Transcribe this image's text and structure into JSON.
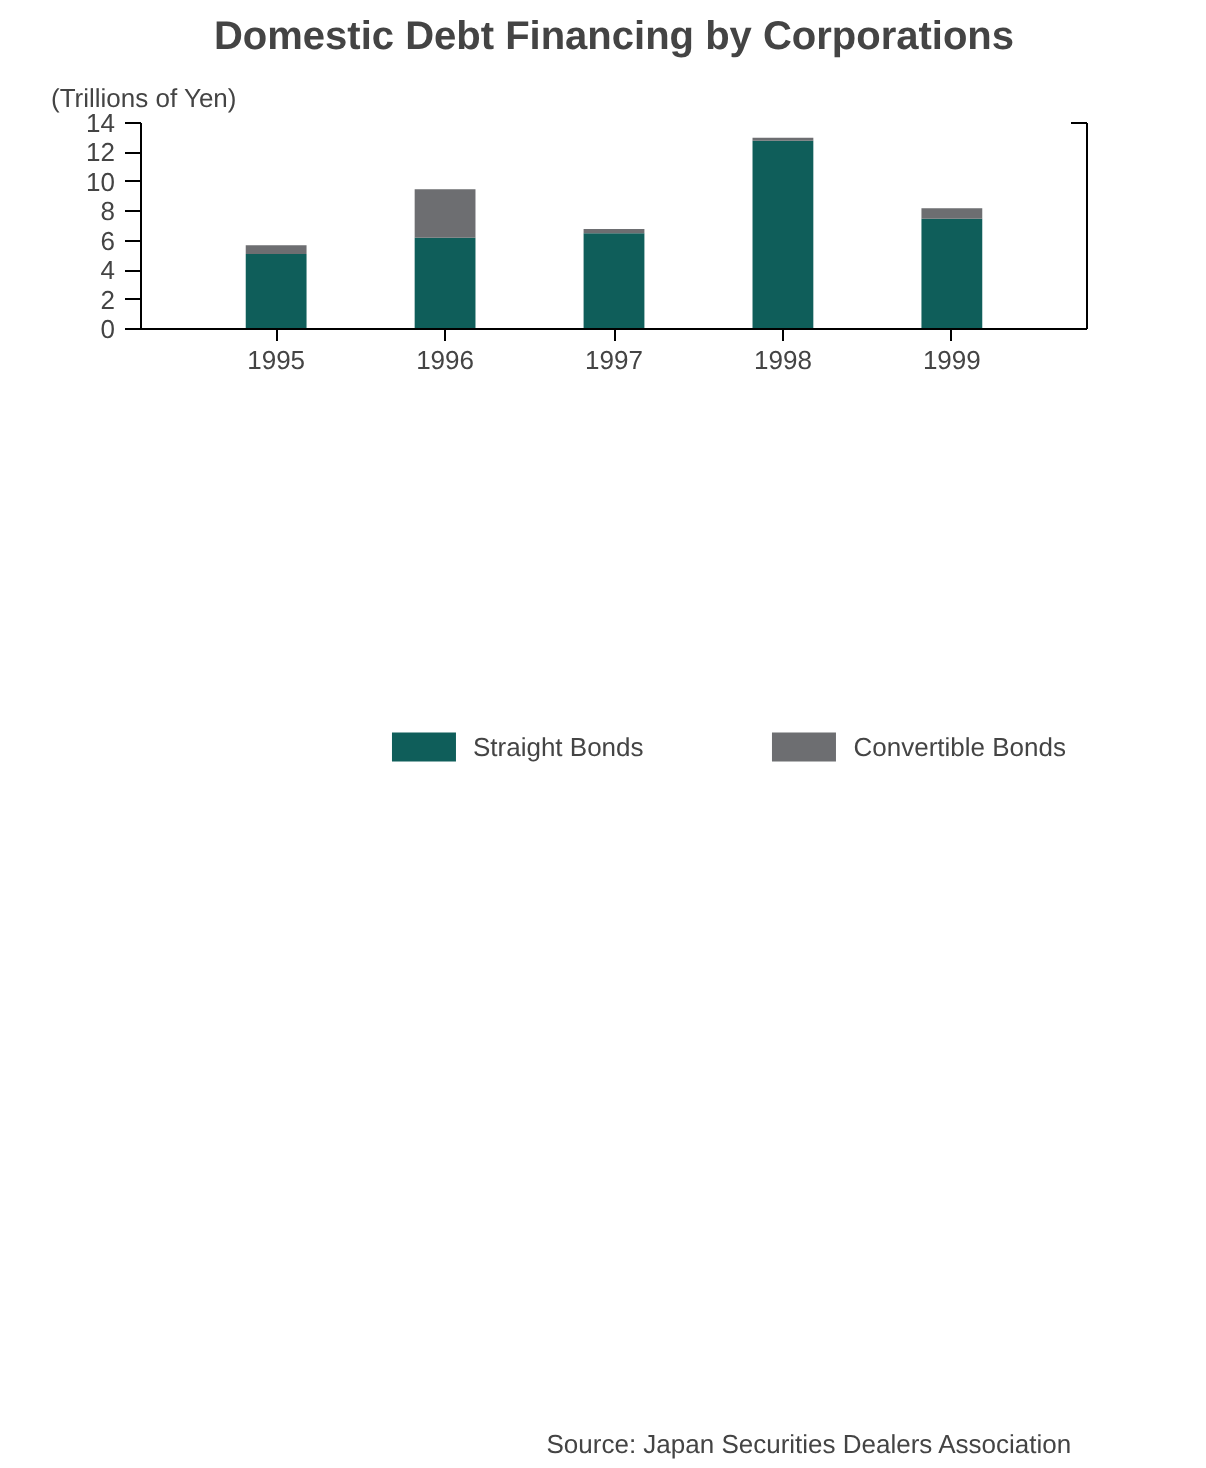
{
  "chart_data": {
    "type": "bar",
    "title": "Domestic Debt Financing by Corporations",
    "ylabel": "(Trillions of Yen)",
    "categories": [
      "1995",
      "1996",
      "1997",
      "1998",
      "1999"
    ],
    "stacked": true,
    "series": [
      {
        "name": "Straight Bonds",
        "color": "#0f5e5a",
        "values": [
          5.1,
          6.2,
          6.5,
          12.8,
          7.5
        ]
      },
      {
        "name": "Convertible Bonds",
        "color": "#6d6e71",
        "values": [
          0.6,
          3.3,
          0.3,
          0.2,
          0.7
        ]
      }
    ],
    "ylim": [
      0,
      14
    ],
    "yticks": [
      0,
      2,
      4,
      6,
      8,
      10,
      12,
      14
    ],
    "grid": false,
    "legend": "bottom",
    "annotations": [
      "Source:   Japan Securities Dealers Association"
    ]
  }
}
